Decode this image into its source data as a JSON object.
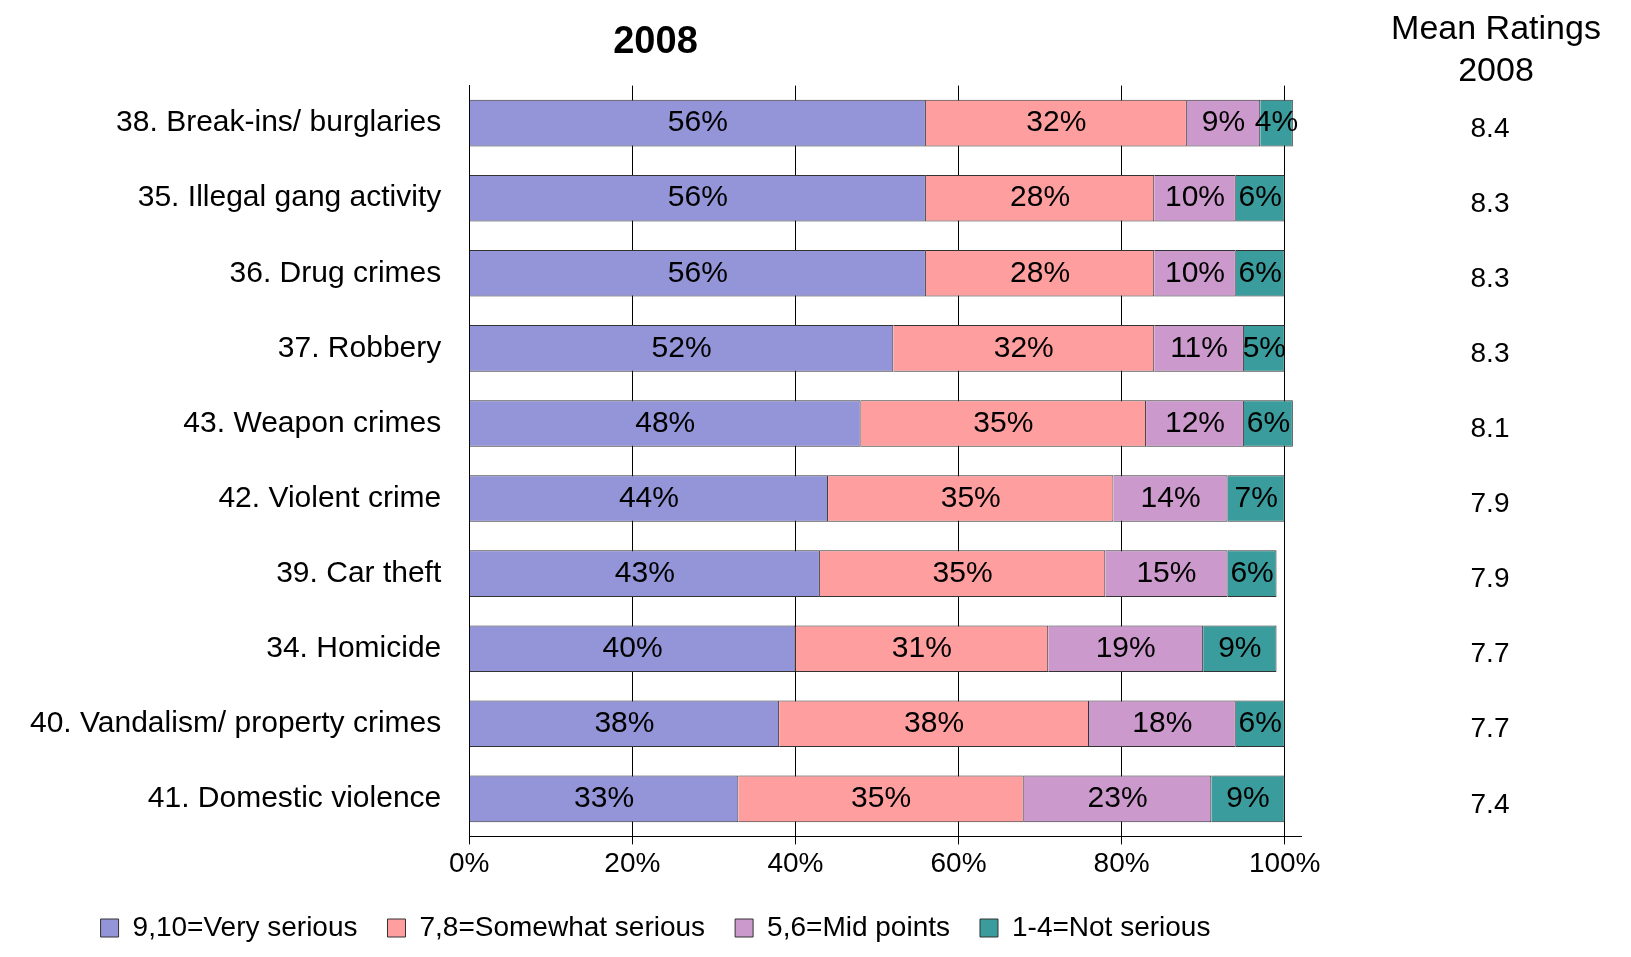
{
  "chart_data": {
    "type": "bar",
    "orientation": "horizontal",
    "stacked": true,
    "title": "2008",
    "categories": [
      "38. Break-ins/ burglaries",
      "35. Illegal gang activity",
      "36. Drug crimes",
      "37. Robbery",
      "43. Weapon crimes",
      "42. Violent crime",
      "39. Car theft",
      "34. Homicide",
      "40. Vandalism/ property crimes",
      "41. Domestic violence"
    ],
    "series": [
      {
        "name": "9,10=Very serious",
        "color": "#9494d8",
        "values": [
          56,
          56,
          56,
          52,
          48,
          44,
          43,
          40,
          38,
          33
        ],
        "value_labels": [
          "56%",
          "56%",
          "56%",
          "52%",
          "48%",
          "44%",
          "43%",
          "40%",
          "38%",
          "33%"
        ]
      },
      {
        "name": "7,8=Somewhat serious",
        "color": "#ff9e9e",
        "values": [
          32,
          28,
          28,
          32,
          35,
          35,
          35,
          31,
          38,
          35
        ],
        "value_labels": [
          "32%",
          "28%",
          "28%",
          "32%",
          "35%",
          "35%",
          "35%",
          "31%",
          "38%",
          "35%"
        ]
      },
      {
        "name": "5,6=Mid points",
        "color": "#cc99cc",
        "values": [
          9,
          10,
          10,
          11,
          12,
          14,
          15,
          19,
          18,
          23
        ],
        "value_labels": [
          "9%",
          "10%",
          "10%",
          "11%",
          "12%",
          "14%",
          "15%",
          "19%",
          "18%",
          "23%"
        ]
      },
      {
        "name": "1-4=Not serious",
        "color": "#3a9c9c",
        "values": [
          4,
          6,
          6,
          5,
          6,
          7,
          6,
          9,
          6,
          9
        ],
        "value_labels": [
          "4%",
          "6%",
          "6%",
          "5%",
          "6%",
          "7%",
          "6%",
          "9%",
          "6%",
          "9%"
        ]
      }
    ],
    "xlim": [
      0,
      102
    ],
    "xticks": [
      {
        "value": 0,
        "label": "0%"
      },
      {
        "value": 20,
        "label": "20%"
      },
      {
        "value": 40,
        "label": "40%"
      },
      {
        "value": 60,
        "label": "60%"
      },
      {
        "value": 80,
        "label": "80%"
      },
      {
        "value": 100,
        "label": "100%"
      }
    ],
    "grid": "x",
    "legend": "bottom",
    "annotations": [
      "Mean Ratings 2008",
      "8.4",
      "8.3",
      "8.3",
      "8.3",
      "8.1",
      "7.9",
      "7.9",
      "7.7",
      "7.7",
      "7.4"
    ]
  }
}
